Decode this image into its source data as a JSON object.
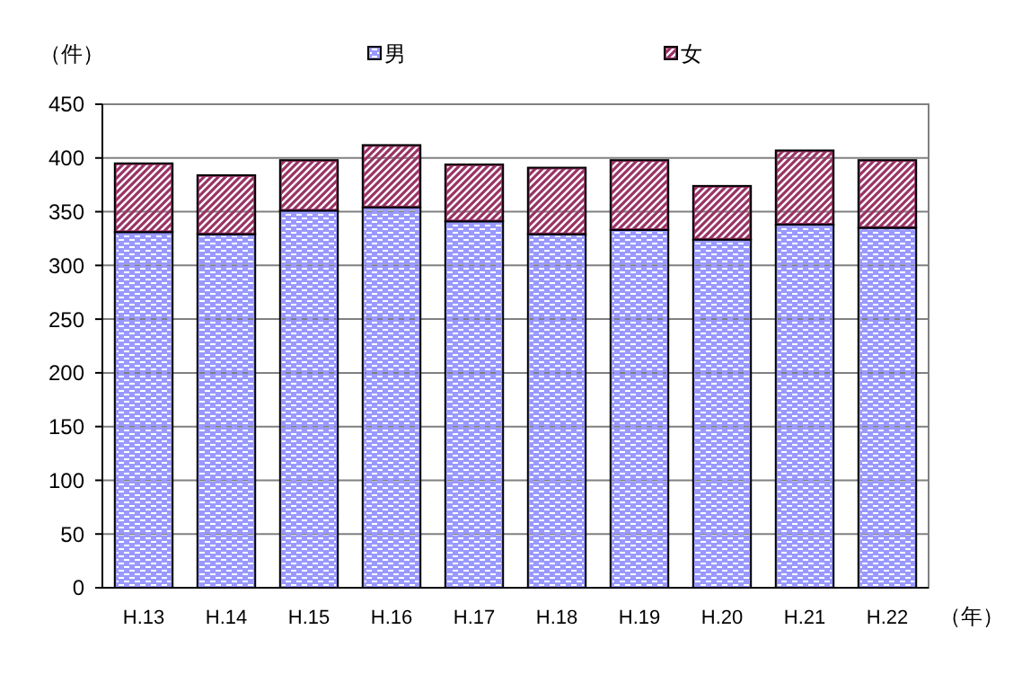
{
  "chart_data": {
    "type": "bar",
    "stacked": true,
    "ylabel": "（件）",
    "xlabel": "（年）",
    "categories": [
      "H.13",
      "H.14",
      "H.15",
      "H.16",
      "H.17",
      "H.18",
      "H.19",
      "H.20",
      "H.21",
      "H.22"
    ],
    "series": [
      {
        "name": "男",
        "color": "#9999ff",
        "values": [
          331,
          329,
          351,
          354,
          341,
          329,
          333,
          324,
          338,
          335
        ]
      },
      {
        "name": "女",
        "color": "#993366",
        "values": [
          64,
          55,
          47,
          58,
          53,
          62,
          65,
          50,
          69,
          63
        ]
      }
    ],
    "ylim": [
      0,
      450
    ],
    "yticks": [
      0,
      50,
      100,
      150,
      200,
      250,
      300,
      350,
      400,
      450
    ],
    "grid": "y",
    "legend": "top"
  }
}
